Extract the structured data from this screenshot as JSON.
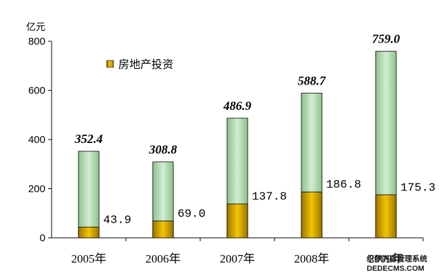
{
  "chart_data": {
    "type": "bar",
    "unit_label": "亿元",
    "categories": [
      "2005年",
      "2006年",
      "2007年",
      "2008年",
      "2009年"
    ],
    "series": [
      {
        "name": "",
        "values": [
          352.4,
          308.8,
          486.9,
          588.7,
          759.0
        ]
      },
      {
        "name": "房地产投资",
        "values": [
          43.9,
          69.0,
          137.8,
          186.8,
          175.3
        ]
      }
    ],
    "total_labels": [
      "352.4",
      "308.8",
      "486.9",
      "588.7",
      "759.0"
    ],
    "inner_labels": [
      "43.9",
      "69.0",
      "137.8",
      "186.8",
      "175.3"
    ],
    "yticks": [
      0,
      200,
      400,
      600,
      800
    ],
    "ylim": [
      0,
      800
    ],
    "legend_position": "top-left",
    "colors": {
      "total": "#b4dcb4",
      "real_estate": "#c49a00",
      "axis": "#000000"
    }
  },
  "watermark": {
    "line1": "织梦内容管理系统",
    "line2": "DEDECMS.COM"
  }
}
